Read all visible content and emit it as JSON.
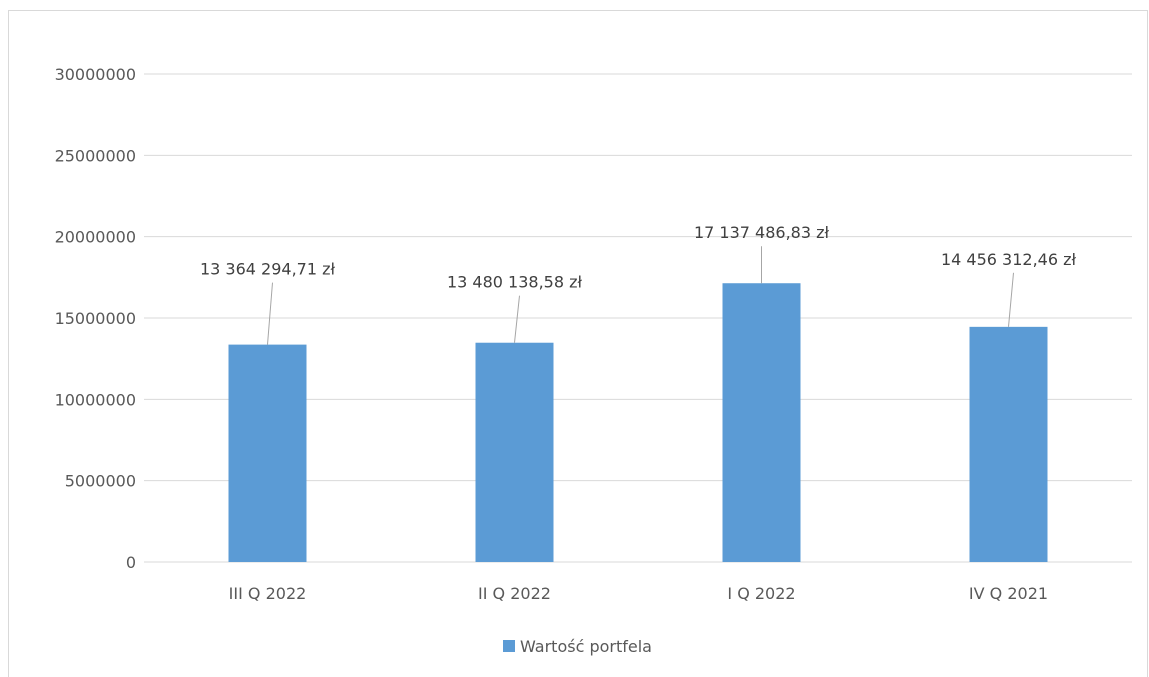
{
  "chart_data": {
    "type": "bar",
    "categories": [
      "III Q 2022",
      "II Q 2022",
      "I Q 2022",
      "IV Q 2021"
    ],
    "series": [
      {
        "name": "Wartość portfela",
        "values": [
          13364294.71,
          13480138.58,
          17137486.83,
          14456312.46
        ],
        "data_labels": [
          "13 364 294,71 zł",
          "13 480 138,58 zł",
          "17 137 486,83 zł",
          "14 456 312,46 zł"
        ],
        "color": "#5b9bd5"
      }
    ],
    "ylim": [
      0,
      30000000
    ],
    "yticks": [
      "0",
      "5000000",
      "10000000",
      "15000000",
      "20000000",
      "25000000",
      "30000000"
    ],
    "grid": true,
    "legend": "bottom",
    "colors": {
      "grid": "#d9d9d9",
      "axis_text": "#595959",
      "leader_line": "#a6a6a6",
      "frame": "#d9d9d9"
    }
  }
}
